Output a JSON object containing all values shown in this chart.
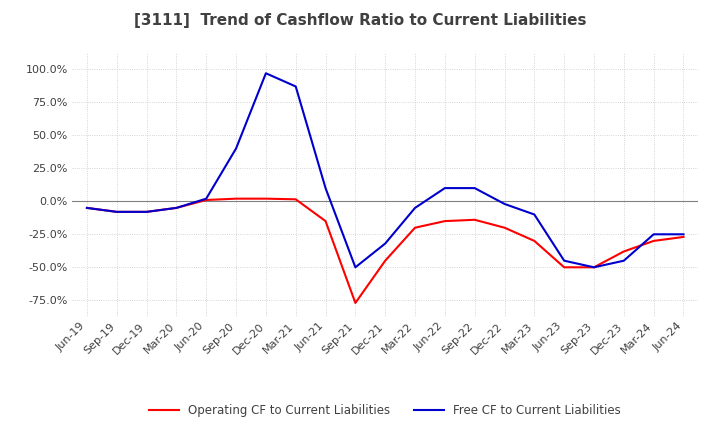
{
  "title": "[3111]  Trend of Cashflow Ratio to Current Liabilities",
  "title_color": "#404040",
  "background_color": "#ffffff",
  "grid_color": "#c8c8c8",
  "ylim": [
    -87.5,
    112.5
  ],
  "yticks": [
    -75.0,
    -50.0,
    -25.0,
    0.0,
    25.0,
    50.0,
    75.0,
    100.0
  ],
  "ytick_labels": [
    "-75.0%",
    "-50.0%",
    "-25.0%",
    "0.0%",
    "25.0%",
    "50.0%",
    "75.0%",
    "100.0%"
  ],
  "x_labels": [
    "Jun-19",
    "Sep-19",
    "Dec-19",
    "Mar-20",
    "Jun-20",
    "Sep-20",
    "Dec-20",
    "Mar-21",
    "Jun-21",
    "Sep-21",
    "Dec-21",
    "Mar-22",
    "Jun-22",
    "Sep-22",
    "Dec-22",
    "Mar-23",
    "Jun-23",
    "Sep-23",
    "Dec-23",
    "Mar-24",
    "Jun-24"
  ],
  "operating_cf": [
    -5.0,
    -8.0,
    -8.0,
    -5.0,
    1.0,
    2.0,
    2.0,
    1.5,
    -15.0,
    -77.0,
    -45.0,
    -20.0,
    -15.0,
    -14.0,
    -20.0,
    -30.0,
    -50.0,
    -50.0,
    -38.0,
    -30.0,
    -27.0
  ],
  "free_cf": [
    -5.0,
    -8.0,
    -8.0,
    -5.0,
    2.0,
    40.0,
    97.0,
    87.0,
    10.0,
    -50.0,
    -32.0,
    -5.0,
    10.0,
    10.0,
    -2.0,
    -10.0,
    -45.0,
    -50.0,
    -45.0,
    -25.0,
    -25.0
  ],
  "operating_color": "#ff0000",
  "free_color": "#0000cd",
  "line_width": 1.5,
  "legend_labels": [
    "Operating CF to Current Liabilities",
    "Free CF to Current Liabilities"
  ],
  "legend_colors": [
    "#ff0000",
    "#0000cd"
  ],
  "title_fontsize": 11,
  "tick_fontsize": 8
}
